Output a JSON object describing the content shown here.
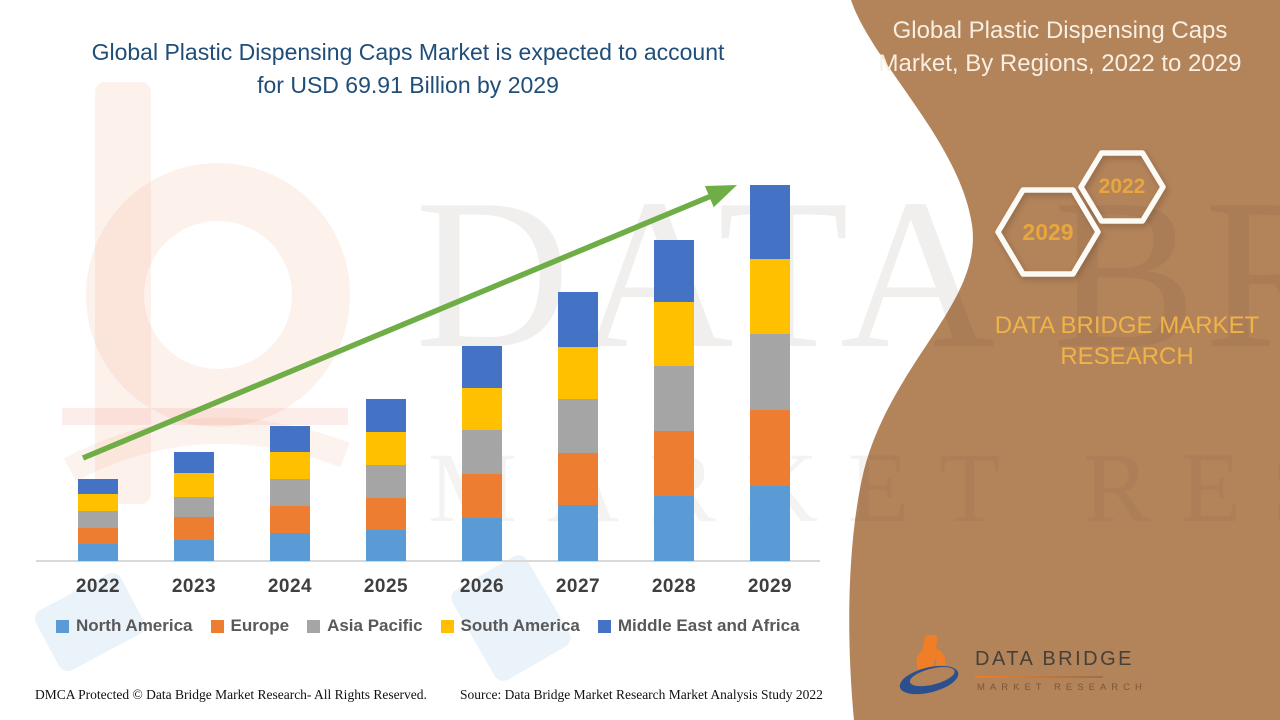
{
  "main_title": {
    "line1": "Global Plastic Dispensing Caps Market is expected to account",
    "line2": "for USD 69.91 Billion by 2029"
  },
  "side_panel": {
    "heading_line1": "Global Plastic Dispensing Caps",
    "heading_line2": "Market, By Regions, 2022 to 2029",
    "badge_year_large": "2029",
    "badge_year_small": "2022",
    "brand": "DATA BRIDGE MARKET RESEARCH",
    "logo_title": "DATA BRIDGE",
    "logo_subtitle": "MARKET RESEARCH"
  },
  "watermark": {
    "line1": "DATA BRIDGE",
    "line2": "MARKET RESEARCH"
  },
  "footer": {
    "dmca": "DMCA Protected © Data Bridge Market Research- All Rights Reserved.",
    "source": "Source: Data Bridge Market Research Market Analysis Study 2022"
  },
  "chart_data": {
    "type": "bar",
    "stacked": true,
    "unit": "USD Billion (estimated from bar heights)",
    "title": "Global Plastic Dispensing Caps Market, By Regions, 2022 to 2029",
    "categories": [
      "2022",
      "2023",
      "2024",
      "2025",
      "2026",
      "2027",
      "2028",
      "2029"
    ],
    "series": [
      {
        "name": "North America",
        "color": "#5B9BD5",
        "values": [
          3.11,
          3.9,
          5.21,
          5.82,
          7.94,
          10.41,
          12.09,
          14.0
        ]
      },
      {
        "name": "Europe",
        "color": "#ED7D31",
        "values": [
          2.97,
          4.28,
          5.09,
          5.89,
          8.18,
          9.61,
          12.03,
          14.08
        ]
      },
      {
        "name": "Asia Pacific",
        "color": "#A5A5A5",
        "values": [
          3.22,
          3.72,
          5.02,
          6.08,
          8.24,
          10.1,
          12.2,
          14.08
        ]
      },
      {
        "name": "South America",
        "color": "#FFC000",
        "values": [
          3.16,
          4.41,
          4.95,
          6.19,
          7.75,
          9.72,
          11.79,
          14.06
        ]
      },
      {
        "name": "Middle East and Africa",
        "color": "#4472C4",
        "values": [
          2.73,
          3.96,
          4.91,
          6.19,
          7.94,
          10.17,
          11.58,
          13.7
        ]
      }
    ],
    "totals": [
      15.19,
      20.27,
      25.18,
      30.17,
      40.05,
      50.01,
      59.69,
      69.91
    ],
    "ylim": [
      0,
      70
    ],
    "xlabel": "",
    "ylabel": "",
    "grid": false,
    "y_axis_visible": false,
    "legend_position": "bottom",
    "annotations": [
      "green upward trend arrow across bar tops"
    ]
  }
}
